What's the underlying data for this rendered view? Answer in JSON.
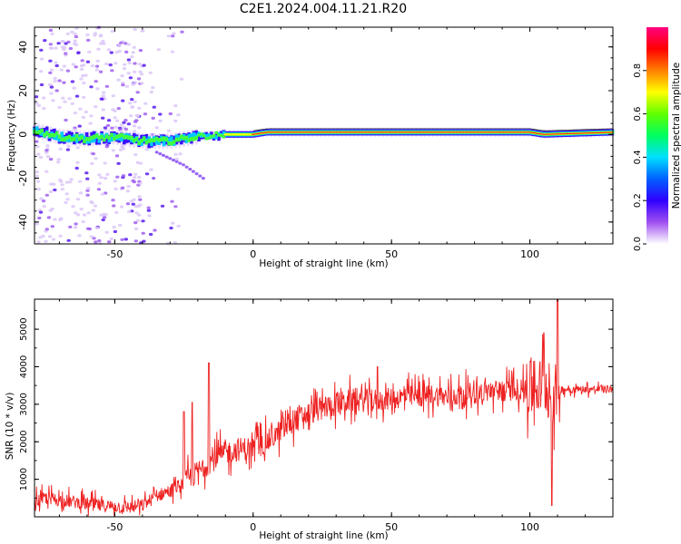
{
  "title": "C2E1.2024.004.11.21.R20",
  "chart_data": [
    {
      "type": "heatmap",
      "xlabel": "Height of straight line (km)",
      "ylabel": "Frequency (Hz)",
      "xlim": [
        -79,
        130
      ],
      "ylim": [
        -50,
        49
      ],
      "xticks": [
        -50,
        0,
        50,
        100
      ],
      "yticks": [
        -40,
        -20,
        0,
        20,
        40
      ],
      "grid": false,
      "colorbar": {
        "label": "Normalized spectral amplitude",
        "range": [
          0.0,
          1.0
        ],
        "ticks": [
          "0.0",
          "0.2",
          "0.4",
          "0.6",
          "0.8"
        ],
        "colors": [
          "#ffffff",
          "#a050f0",
          "#3000ff",
          "#0060ff",
          "#00e0ff",
          "#00ff60",
          "#60ff00",
          "#ffff00",
          "#ff8000",
          "#ff0000",
          "#ff0080"
        ]
      },
      "ridge": [
        {
          "x": -79,
          "f": 2
        },
        {
          "x": -70,
          "f": -1
        },
        {
          "x": -60,
          "f": -2
        },
        {
          "x": -50,
          "f": -1
        },
        {
          "x": -40,
          "f": -3
        },
        {
          "x": -30,
          "f": -3
        },
        {
          "x": -20,
          "f": -1
        },
        {
          "x": -10,
          "f": 0
        },
        {
          "x": 0,
          "f": 0
        },
        {
          "x": 5,
          "f": 1
        },
        {
          "x": 10,
          "f": 1
        },
        {
          "x": 20,
          "f": 1
        },
        {
          "x": 50,
          "f": 1
        },
        {
          "x": 80,
          "f": 1
        },
        {
          "x": 100,
          "f": 1
        },
        {
          "x": 105,
          "f": 0
        },
        {
          "x": 130,
          "f": 1
        }
      ],
      "branch": [
        {
          "x": -35,
          "f": -8
        },
        {
          "x": -25,
          "f": -14
        },
        {
          "x": -18,
          "f": -20
        }
      ],
      "scatter_region": {
        "x_range": [
          -79,
          -25
        ],
        "f_range": [
          -50,
          49
        ]
      }
    },
    {
      "type": "line",
      "xlabel": "Height of straight line (km)",
      "ylabel": "SNR (10 * v/v)",
      "xlim": [
        -79,
        130
      ],
      "ylim": [
        0,
        5800
      ],
      "xticks": [
        -50,
        0,
        50,
        100
      ],
      "yticks": [
        1000,
        2000,
        3000,
        4000,
        5000
      ],
      "grid": false,
      "color": "#ee2222",
      "series": [
        {
          "x": [
            -79,
            -75,
            -70,
            -65,
            -60,
            -55,
            -50,
            -45,
            -40,
            -35,
            -30,
            -25,
            -20,
            -15,
            -10,
            -5,
            0,
            5,
            10,
            15,
            20,
            25,
            30,
            35,
            40,
            45,
            50,
            55,
            60,
            65,
            70,
            75,
            80,
            85,
            90,
            95,
            100,
            105,
            108,
            110,
            115,
            120,
            125,
            130
          ],
          "y": [
            400,
            500,
            450,
            400,
            350,
            300,
            280,
            250,
            300,
            550,
            700,
            900,
            1200,
            1500,
            1700,
            1800,
            1850,
            2000,
            2300,
            2600,
            2750,
            2900,
            3000,
            3100,
            3100,
            3100,
            3150,
            3200,
            3200,
            3250,
            3200,
            3250,
            3300,
            3350,
            3350,
            3400,
            3400,
            3500,
            3200,
            3400,
            3400,
            3400,
            3400,
            3400
          ]
        }
      ],
      "spikes": [
        {
          "x": -16,
          "y": 4100
        },
        {
          "x": -22,
          "y": 3050
        },
        {
          "x": -25,
          "y": 2800
        },
        {
          "x": 45,
          "y": 4000
        },
        {
          "x": 105,
          "y": 4900
        },
        {
          "x": 108,
          "y": 300
        },
        {
          "x": 110,
          "y": 5800
        }
      ]
    }
  ]
}
